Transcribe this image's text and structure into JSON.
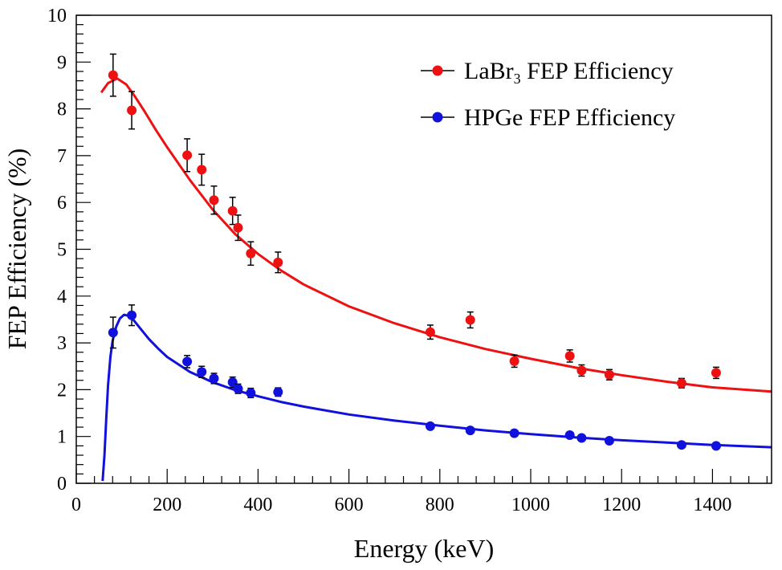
{
  "chart_data": {
    "type": "scatter",
    "title": "",
    "xlabel": "Energy (keV)",
    "ylabel": "FEP Efficiency (%)",
    "xlim": [
      0,
      1530
    ],
    "ylim": [
      0,
      10
    ],
    "x_ticks": [
      0,
      200,
      400,
      600,
      800,
      1000,
      1200,
      1400
    ],
    "y_ticks": [
      0,
      1,
      2,
      3,
      4,
      5,
      6,
      7,
      8,
      9,
      10
    ],
    "grid": false,
    "legend_position": "top-right",
    "series": [
      {
        "name": "LaBr3 FEP Efficiency",
        "legend_main": "LaBr",
        "legend_sub": "3",
        "legend_rest": " FEP Efficiency",
        "color": "#ee1111",
        "points": [
          {
            "x": 81,
            "y": 8.72,
            "err": 0.45
          },
          {
            "x": 122,
            "y": 7.97,
            "err": 0.4
          },
          {
            "x": 244,
            "y": 7.01,
            "err": 0.35
          },
          {
            "x": 276,
            "y": 6.7,
            "err": 0.33
          },
          {
            "x": 303,
            "y": 6.05,
            "err": 0.3
          },
          {
            "x": 344,
            "y": 5.82,
            "err": 0.29
          },
          {
            "x": 356,
            "y": 5.46,
            "err": 0.27
          },
          {
            "x": 384,
            "y": 4.91,
            "err": 0.25
          },
          {
            "x": 444,
            "y": 4.72,
            "err": 0.22
          },
          {
            "x": 779,
            "y": 3.23,
            "err": 0.15
          },
          {
            "x": 867,
            "y": 3.49,
            "err": 0.17
          },
          {
            "x": 964,
            "y": 2.61,
            "err": 0.13
          },
          {
            "x": 1086,
            "y": 2.72,
            "err": 0.13
          },
          {
            "x": 1112,
            "y": 2.41,
            "err": 0.12
          },
          {
            "x": 1173,
            "y": 2.32,
            "err": 0.11
          },
          {
            "x": 1332,
            "y": 2.14,
            "err": 0.1
          },
          {
            "x": 1408,
            "y": 2.36,
            "err": 0.12
          }
        ],
        "fit": {
          "x": [
            55,
            70,
            90,
            110,
            130,
            150,
            175,
            200,
            250,
            300,
            350,
            400,
            450,
            500,
            600,
            700,
            800,
            900,
            1000,
            1100,
            1200,
            1300,
            1400,
            1530
          ],
          "y": [
            8.35,
            8.55,
            8.65,
            8.52,
            8.25,
            7.95,
            7.55,
            7.18,
            6.48,
            5.85,
            5.32,
            4.9,
            4.55,
            4.25,
            3.78,
            3.42,
            3.12,
            2.87,
            2.66,
            2.47,
            2.31,
            2.17,
            2.05,
            1.96
          ]
        }
      },
      {
        "name": "HPGe FEP Efficiency",
        "legend_main": "HPGe FEP Efficiency",
        "legend_sub": "",
        "legend_rest": "",
        "color": "#1111dd",
        "points": [
          {
            "x": 81,
            "y": 3.22,
            "err": 0.33
          },
          {
            "x": 122,
            "y": 3.59,
            "err": 0.22
          },
          {
            "x": 244,
            "y": 2.6,
            "err": 0.13
          },
          {
            "x": 276,
            "y": 2.38,
            "err": 0.12
          },
          {
            "x": 303,
            "y": 2.24,
            "err": 0.11
          },
          {
            "x": 344,
            "y": 2.16,
            "err": 0.11
          },
          {
            "x": 356,
            "y": 2.02,
            "err": 0.1
          },
          {
            "x": 384,
            "y": 1.93,
            "err": 0.1
          },
          {
            "x": 444,
            "y": 1.95,
            "err": 0.09
          },
          {
            "x": 779,
            "y": 1.22,
            "err": 0.03
          },
          {
            "x": 867,
            "y": 1.13,
            "err": 0.03
          },
          {
            "x": 964,
            "y": 1.07,
            "err": 0.03
          },
          {
            "x": 1086,
            "y": 1.03,
            "err": 0.03
          },
          {
            "x": 1112,
            "y": 0.97,
            "err": 0.03
          },
          {
            "x": 1173,
            "y": 0.91,
            "err": 0.03
          },
          {
            "x": 1332,
            "y": 0.82,
            "err": 0.02
          },
          {
            "x": 1408,
            "y": 0.8,
            "err": 0.02
          }
        ],
        "fit": {
          "x": [
            58,
            62,
            66,
            70,
            75,
            80,
            88,
            96,
            105,
            115,
            125,
            140,
            160,
            180,
            200,
            250,
            300,
            350,
            400,
            450,
            500,
            600,
            700,
            800,
            900,
            1000,
            1100,
            1200,
            1300,
            1400,
            1530
          ],
          "y": [
            0.05,
            0.6,
            1.4,
            2.1,
            2.7,
            3.05,
            3.35,
            3.52,
            3.6,
            3.58,
            3.5,
            3.32,
            3.08,
            2.88,
            2.7,
            2.38,
            2.16,
            1.99,
            1.86,
            1.74,
            1.64,
            1.47,
            1.34,
            1.23,
            1.13,
            1.05,
            0.98,
            0.92,
            0.87,
            0.82,
            0.77
          ]
        }
      }
    ]
  }
}
